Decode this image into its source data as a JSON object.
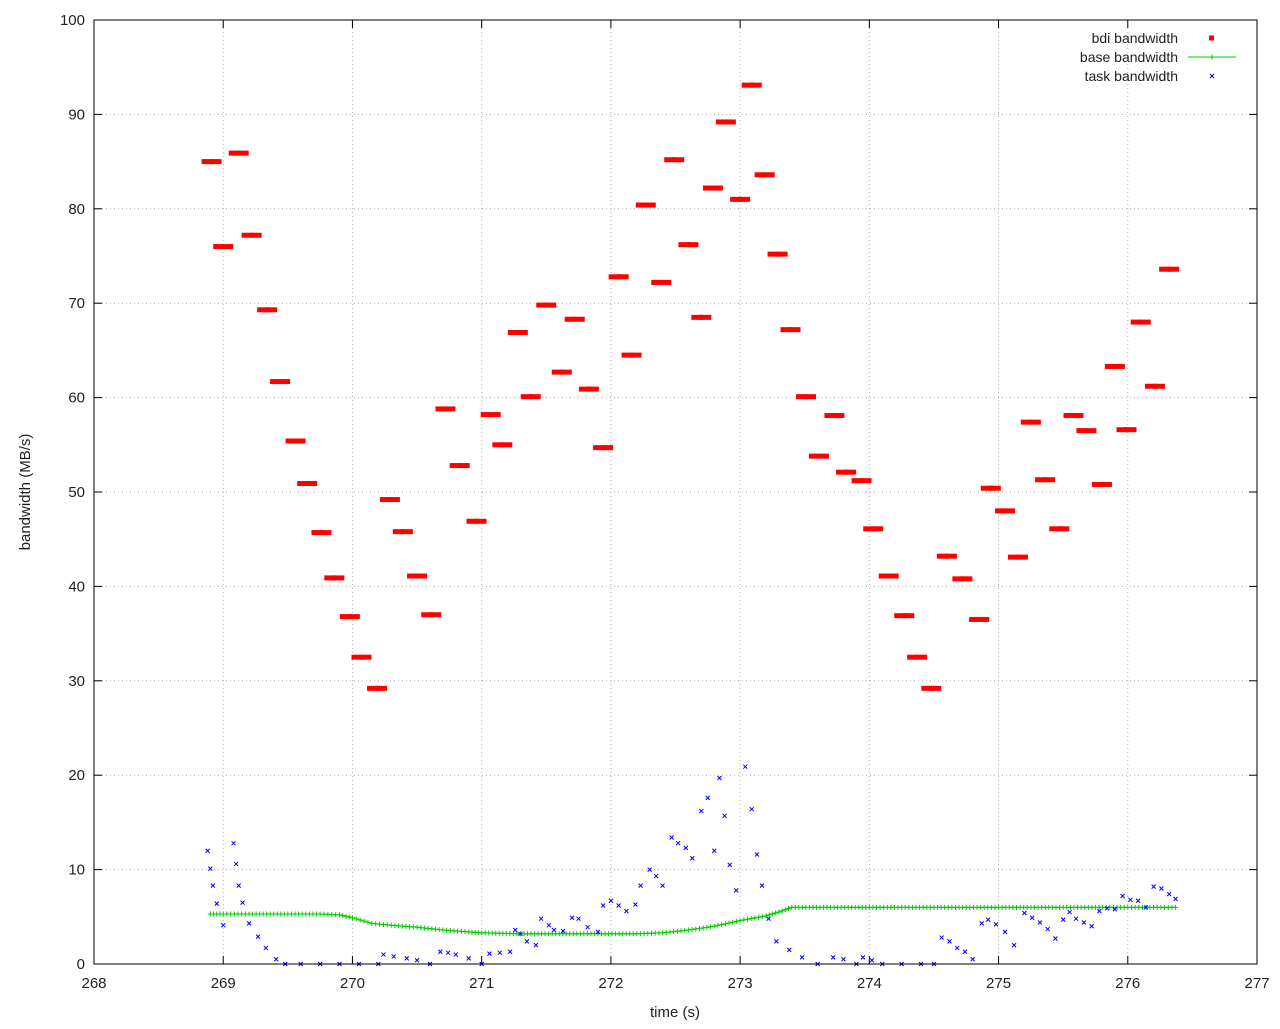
{
  "chart_data": {
    "type": "scatter",
    "xlabel": "time (s)",
    "ylabel": "bandwidth (MB/s)",
    "xlim": [
      268,
      277
    ],
    "ylim": [
      0,
      100
    ],
    "xticks": [
      268,
      269,
      270,
      271,
      272,
      273,
      274,
      275,
      276,
      277
    ],
    "yticks": [
      0,
      10,
      20,
      30,
      40,
      50,
      60,
      70,
      80,
      90,
      100
    ],
    "grid": true,
    "legend_position": "top-right",
    "series": [
      {
        "name": "bdi bandwidth",
        "style": "points",
        "marker": "square",
        "color": "#ff0000",
        "points": [
          [
            268.91,
            85.0
          ],
          [
            269.0,
            76.0
          ],
          [
            269.12,
            85.9
          ],
          [
            269.22,
            77.2
          ],
          [
            269.34,
            69.3
          ],
          [
            269.44,
            61.7
          ],
          [
            269.56,
            55.4
          ],
          [
            269.65,
            50.9
          ],
          [
            269.76,
            45.7
          ],
          [
            269.86,
            40.9
          ],
          [
            269.98,
            36.8
          ],
          [
            270.07,
            32.5
          ],
          [
            270.19,
            29.2
          ],
          [
            270.29,
            49.2
          ],
          [
            270.39,
            45.8
          ],
          [
            270.5,
            41.1
          ],
          [
            270.61,
            37.0
          ],
          [
            270.72,
            58.8
          ],
          [
            270.83,
            52.8
          ],
          [
            270.96,
            46.9
          ],
          [
            271.07,
            58.2
          ],
          [
            271.16,
            55.0
          ],
          [
            271.28,
            66.9
          ],
          [
            271.38,
            60.1
          ],
          [
            271.5,
            69.8
          ],
          [
            271.62,
            62.7
          ],
          [
            271.72,
            68.3
          ],
          [
            271.83,
            60.9
          ],
          [
            271.94,
            54.7
          ],
          [
            272.06,
            72.8
          ],
          [
            272.16,
            64.5
          ],
          [
            272.27,
            80.4
          ],
          [
            272.39,
            72.2
          ],
          [
            272.49,
            85.2
          ],
          [
            272.6,
            76.2
          ],
          [
            272.7,
            68.5
          ],
          [
            272.79,
            82.2
          ],
          [
            272.89,
            89.2
          ],
          [
            273.0,
            81.0
          ],
          [
            273.09,
            93.1
          ],
          [
            273.19,
            83.6
          ],
          [
            273.29,
            75.2
          ],
          [
            273.39,
            67.2
          ],
          [
            273.51,
            60.1
          ],
          [
            273.61,
            53.8
          ],
          [
            273.73,
            58.1
          ],
          [
            273.82,
            52.1
          ],
          [
            273.94,
            51.2
          ],
          [
            274.03,
            46.1
          ],
          [
            274.15,
            41.1
          ],
          [
            274.27,
            36.9
          ],
          [
            274.37,
            32.5
          ],
          [
            274.48,
            29.2
          ],
          [
            274.6,
            43.2
          ],
          [
            274.72,
            40.8
          ],
          [
            274.85,
            36.5
          ],
          [
            274.94,
            50.4
          ],
          [
            275.05,
            48.0
          ],
          [
            275.15,
            43.1
          ],
          [
            275.25,
            57.4
          ],
          [
            275.36,
            51.3
          ],
          [
            275.47,
            46.1
          ],
          [
            275.58,
            58.1
          ],
          [
            275.68,
            56.5
          ],
          [
            275.8,
            50.8
          ],
          [
            275.9,
            63.3
          ],
          [
            275.99,
            56.6
          ],
          [
            276.1,
            68.0
          ],
          [
            276.21,
            61.2
          ],
          [
            276.32,
            73.6
          ]
        ]
      },
      {
        "name": "base bandwidth",
        "style": "linespoints",
        "marker": "plus",
        "color": "#00cc00",
        "points": [
          [
            268.9,
            5.3
          ],
          [
            269.0,
            5.3
          ],
          [
            269.2,
            5.3
          ],
          [
            269.5,
            5.3
          ],
          [
            269.75,
            5.3
          ],
          [
            269.9,
            5.2
          ],
          [
            270.0,
            4.9
          ],
          [
            270.15,
            4.3
          ],
          [
            270.3,
            4.1
          ],
          [
            270.5,
            3.9
          ],
          [
            270.7,
            3.6
          ],
          [
            270.9,
            3.4
          ],
          [
            271.0,
            3.3
          ],
          [
            271.3,
            3.2
          ],
          [
            271.6,
            3.2
          ],
          [
            271.9,
            3.2
          ],
          [
            272.2,
            3.2
          ],
          [
            272.4,
            3.3
          ],
          [
            272.6,
            3.6
          ],
          [
            272.8,
            4.0
          ],
          [
            273.0,
            4.6
          ],
          [
            273.2,
            5.1
          ],
          [
            273.3,
            5.5
          ],
          [
            273.4,
            6.0
          ],
          [
            273.7,
            6.0
          ],
          [
            274.0,
            6.0
          ],
          [
            274.5,
            6.0
          ],
          [
            275.0,
            6.0
          ],
          [
            275.5,
            6.0
          ],
          [
            276.0,
            6.0
          ],
          [
            276.37,
            6.0
          ]
        ]
      },
      {
        "name": "task bandwidth",
        "style": "points",
        "marker": "x",
        "color": "#0000ff",
        "points": [
          [
            268.88,
            12.0
          ],
          [
            268.9,
            10.1
          ],
          [
            268.92,
            8.3
          ],
          [
            268.95,
            6.4
          ],
          [
            269.0,
            4.1
          ],
          [
            269.08,
            12.8
          ],
          [
            269.1,
            10.6
          ],
          [
            269.12,
            8.3
          ],
          [
            269.15,
            6.5
          ],
          [
            269.2,
            4.3
          ],
          [
            269.27,
            2.9
          ],
          [
            269.33,
            1.7
          ],
          [
            269.41,
            0.5
          ],
          [
            269.48,
            0.0
          ],
          [
            269.6,
            0.0
          ],
          [
            269.75,
            0.0
          ],
          [
            269.9,
            0.0
          ],
          [
            270.05,
            0.0
          ],
          [
            270.2,
            0.0
          ],
          [
            270.24,
            1.0
          ],
          [
            270.32,
            0.8
          ],
          [
            270.42,
            0.6
          ],
          [
            270.5,
            0.4
          ],
          [
            270.6,
            0.0
          ],
          [
            270.68,
            1.3
          ],
          [
            270.74,
            1.2
          ],
          [
            270.8,
            1.0
          ],
          [
            270.9,
            0.6
          ],
          [
            271.0,
            0.0
          ],
          [
            271.06,
            1.1
          ],
          [
            271.14,
            1.2
          ],
          [
            271.22,
            1.3
          ],
          [
            271.26,
            3.6
          ],
          [
            271.3,
            3.2
          ],
          [
            271.35,
            2.4
          ],
          [
            271.42,
            2.0
          ],
          [
            271.46,
            4.8
          ],
          [
            271.52,
            4.1
          ],
          [
            271.56,
            3.6
          ],
          [
            271.63,
            3.5
          ],
          [
            271.7,
            4.9
          ],
          [
            271.75,
            4.8
          ],
          [
            271.82,
            3.9
          ],
          [
            271.9,
            3.4
          ],
          [
            271.94,
            6.2
          ],
          [
            272.0,
            6.7
          ],
          [
            272.06,
            6.2
          ],
          [
            272.12,
            5.6
          ],
          [
            272.19,
            6.3
          ],
          [
            272.23,
            8.3
          ],
          [
            272.3,
            10.0
          ],
          [
            272.35,
            9.3
          ],
          [
            272.4,
            8.3
          ],
          [
            272.47,
            13.4
          ],
          [
            272.52,
            12.8
          ],
          [
            272.58,
            12.3
          ],
          [
            272.63,
            11.2
          ],
          [
            272.7,
            16.2
          ],
          [
            272.75,
            17.6
          ],
          [
            272.8,
            12.0
          ],
          [
            272.84,
            19.7
          ],
          [
            272.88,
            15.7
          ],
          [
            272.92,
            10.5
          ],
          [
            272.97,
            7.8
          ],
          [
            273.04,
            20.9
          ],
          [
            273.09,
            16.4
          ],
          [
            273.13,
            11.6
          ],
          [
            273.17,
            8.3
          ],
          [
            273.22,
            4.8
          ],
          [
            273.28,
            2.4
          ],
          [
            273.38,
            1.5
          ],
          [
            273.48,
            0.7
          ],
          [
            273.6,
            0.0
          ],
          [
            273.72,
            0.7
          ],
          [
            273.8,
            0.5
          ],
          [
            273.9,
            0.0
          ],
          [
            273.95,
            0.7
          ],
          [
            274.02,
            0.4
          ],
          [
            274.1,
            0.0
          ],
          [
            274.25,
            0.0
          ],
          [
            274.4,
            0.0
          ],
          [
            274.5,
            0.0
          ],
          [
            274.56,
            2.8
          ],
          [
            274.62,
            2.4
          ],
          [
            274.68,
            1.7
          ],
          [
            274.74,
            1.3
          ],
          [
            274.8,
            0.5
          ],
          [
            274.87,
            4.3
          ],
          [
            274.92,
            4.7
          ],
          [
            274.98,
            4.2
          ],
          [
            275.05,
            3.4
          ],
          [
            275.12,
            2.0
          ],
          [
            275.2,
            5.4
          ],
          [
            275.26,
            4.9
          ],
          [
            275.32,
            4.4
          ],
          [
            275.38,
            3.7
          ],
          [
            275.44,
            2.7
          ],
          [
            275.5,
            4.7
          ],
          [
            275.55,
            5.5
          ],
          [
            275.6,
            4.8
          ],
          [
            275.66,
            4.4
          ],
          [
            275.72,
            4.0
          ],
          [
            275.78,
            5.6
          ],
          [
            275.84,
            5.9
          ],
          [
            275.9,
            5.8
          ],
          [
            275.96,
            7.2
          ],
          [
            276.02,
            6.8
          ],
          [
            276.08,
            6.7
          ],
          [
            276.14,
            6.0
          ],
          [
            276.2,
            8.2
          ],
          [
            276.26,
            8.0
          ],
          [
            276.32,
            7.4
          ],
          [
            276.37,
            6.9
          ]
        ]
      }
    ]
  }
}
